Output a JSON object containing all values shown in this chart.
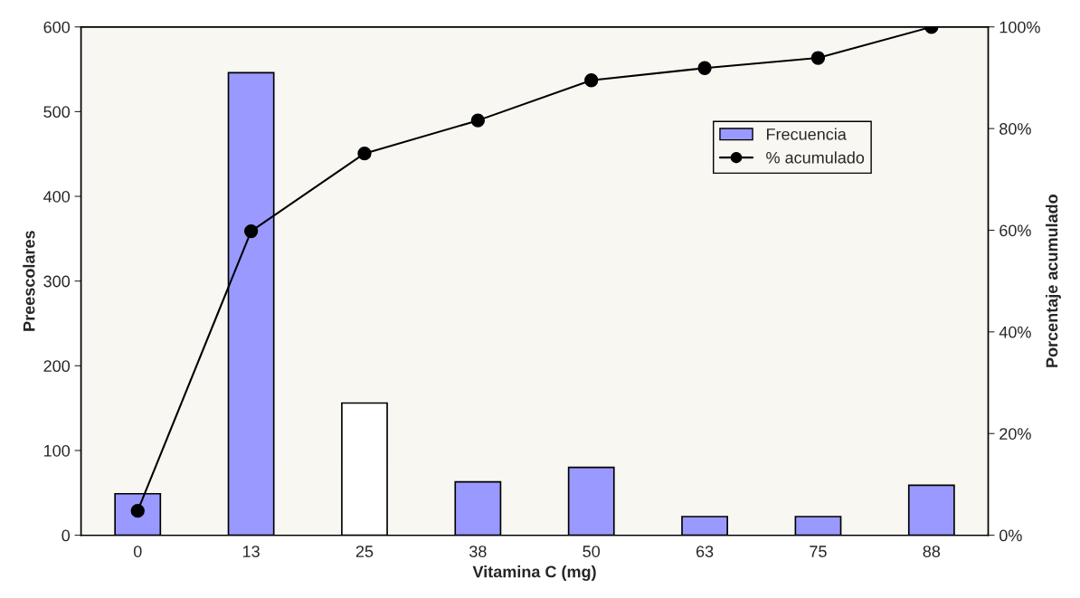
{
  "chart_data": {
    "type": "bar",
    "xlabel": "Vitamina C (mg)",
    "ylabel": "Preescolares",
    "y2label": "Porcentaje acumulado",
    "categories": [
      "0",
      "13",
      "25",
      "38",
      "50",
      "63",
      "75",
      "88"
    ],
    "series": [
      {
        "name": "Frecuencia",
        "color": "#9999ff",
        "colors": [
          "#9999ff",
          "#9999ff",
          "#ffffff",
          "#9999ff",
          "#9999ff",
          "#9999ff",
          "#9999ff",
          "#9999ff"
        ],
        "values": [
          49,
          546,
          156,
          63,
          80,
          22,
          22,
          59
        ]
      },
      {
        "name": "% acumulado",
        "type": "line",
        "axis": "y2",
        "color": "#000000",
        "marker": "circle",
        "values": [
          4.8,
          59.8,
          75.1,
          81.6,
          89.5,
          91.9,
          93.9,
          100
        ]
      }
    ],
    "ylim": [
      0,
      600
    ],
    "yticks": [
      0,
      100,
      200,
      300,
      400,
      500,
      600
    ],
    "y2lim": [
      0,
      100
    ],
    "y2ticks": [
      {
        "value": 0,
        "label": "0%"
      },
      {
        "value": 20,
        "label": "20%"
      },
      {
        "value": 40,
        "label": "40%"
      },
      {
        "value": 60,
        "label": "60%"
      },
      {
        "value": 80,
        "label": "80%"
      },
      {
        "value": 100,
        "label": "100%"
      }
    ],
    "grid": false,
    "legend": "top right"
  }
}
